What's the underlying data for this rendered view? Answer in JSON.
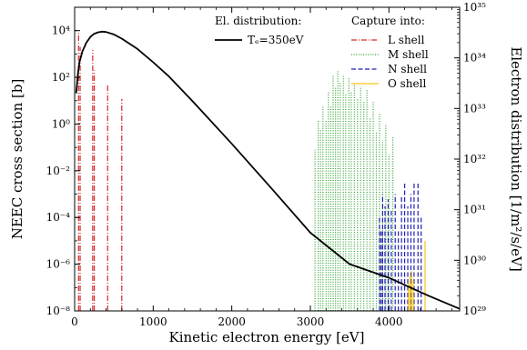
{
  "chart_data": {
    "type": "line",
    "xlabel": "Kinetic electron energy [eV]",
    "ylabel_left": "NEEC cross section [b]",
    "ylabel_right": "Electron distribution [1/m²/s/eV]",
    "xlim": [
      0,
      4900
    ],
    "ylim_left": [
      1e-08,
      100000.0
    ],
    "ylim_right": [
      1e+29,
      1e+35
    ],
    "yscale": "log",
    "x_ticks": [
      0,
      1000,
      2000,
      3000,
      4000
    ],
    "x_tick_labels": [
      "0",
      "1000",
      "2000",
      "3000",
      "4000"
    ],
    "y_left_ticks": [
      1e-08,
      1e-06,
      0.0001,
      0.01,
      1.0,
      100.0,
      10000.0
    ],
    "y_left_tick_labels": [
      "10⁻⁸",
      "10⁻⁶",
      "10⁻⁴",
      "10⁻²",
      "10⁰",
      "10²",
      "10⁴"
    ],
    "y_right_ticks": [
      1e+29,
      1e+30,
      1e+31,
      1e+32,
      1e+33,
      1e+34,
      1e+35
    ],
    "y_right_tick_labels": [
      "10²⁹",
      "10³⁰",
      "10³¹",
      "10³²",
      "10³³",
      "10³⁴",
      "10³⁵"
    ],
    "legend_left": {
      "title": "El. distribution:",
      "entry": "Tₑ=350eV"
    },
    "legend_right": {
      "title": "Capture into:",
      "entries": [
        "L shell",
        "M shell",
        "N shell",
        "O shell"
      ]
    },
    "distribution": {
      "axis": "right",
      "color": "#000000",
      "points": [
        [
          20,
          2e+33
        ],
        [
          40,
          4.6e+33
        ],
        [
          60,
          8.1e+33
        ],
        [
          100,
          1.35e+34
        ],
        [
          150,
          2e+34
        ],
        [
          200,
          2.6e+34
        ],
        [
          250,
          3e+34
        ],
        [
          300,
          3.2e+34
        ],
        [
          350,
          3.3e+34
        ],
        [
          400,
          3.25e+34
        ],
        [
          500,
          2.9e+34
        ],
        [
          600,
          2.4e+34
        ],
        [
          800,
          1.5e+34
        ],
        [
          1000,
          8.2e+33
        ],
        [
          1200,
          4.3e+33
        ],
        [
          1500,
          1.4e+33
        ],
        [
          2000,
          2e+32
        ],
        [
          2500,
          2.7e+31
        ],
        [
          3000,
          3.5e+30
        ],
        [
          3500,
          8.4e+29
        ],
        [
          4000,
          4.5e+29
        ],
        [
          4500,
          2e+29
        ],
        [
          4900,
          1.1e+29
        ]
      ]
    },
    "series": [
      {
        "name": "L shell",
        "axis": "left",
        "color": "#d62728",
        "dash": "6,2,1,2",
        "lines": [
          [
            50,
            8000.0
          ],
          [
            70,
            2000.0
          ],
          [
            230,
            1500.0
          ],
          [
            250,
            200.0
          ],
          [
            420,
            50.0
          ],
          [
            600,
            12.0
          ]
        ]
      },
      {
        "name": "M shell",
        "axis": "left",
        "color": "#2ca02c",
        "dash": "1,1.6",
        "lines": [
          [
            3060,
            0.08
          ],
          [
            3100,
            1.5
          ],
          [
            3130,
            0.6
          ],
          [
            3160,
            6
          ],
          [
            3200,
            1.5
          ],
          [
            3230,
            25
          ],
          [
            3260,
            6
          ],
          [
            3290,
            120
          ],
          [
            3320,
            35
          ],
          [
            3350,
            180
          ],
          [
            3380,
            60
          ],
          [
            3420,
            120
          ],
          [
            3450,
            18
          ],
          [
            3490,
            90
          ],
          [
            3520,
            25
          ],
          [
            3560,
            60
          ],
          [
            3600,
            12
          ],
          [
            3640,
            40
          ],
          [
            3680,
            10
          ],
          [
            3720,
            30
          ],
          [
            3760,
            2
          ],
          [
            3800,
            10
          ],
          [
            3840,
            0.5
          ],
          [
            3880,
            3
          ],
          [
            3920,
            0.2
          ],
          [
            3960,
            1
          ],
          [
            4000,
            0.05
          ],
          [
            4050,
            0.3
          ]
        ]
      },
      {
        "name": "N shell",
        "axis": "left",
        "color": "#1f1fb4",
        "dash": "5,2.5",
        "lines": [
          [
            3880,
            0.0001
          ],
          [
            3900,
            3e-05
          ],
          [
            3920,
            0.001
          ],
          [
            3950,
            0.0003
          ],
          [
            3990,
            0.0006
          ],
          [
            4030,
            0.0002
          ],
          [
            4080,
            0.001
          ],
          [
            4120,
            3e-05
          ],
          [
            4160,
            0.0008
          ],
          [
            4200,
            0.003
          ],
          [
            4240,
            0.0003
          ],
          [
            4280,
            0.001
          ],
          [
            4320,
            0.003
          ],
          [
            4370,
            0.003
          ],
          [
            4410,
            0.0001
          ]
        ]
      },
      {
        "name": "O shell",
        "axis": "left",
        "color": "#f5c518",
        "dash": "",
        "lines": [
          [
            4250,
            1.5e-07
          ],
          [
            4270,
            3e-07
          ],
          [
            4290,
            5e-07
          ],
          [
            4310,
            2e-07
          ],
          [
            4460,
            1e-05
          ]
        ]
      }
    ]
  }
}
